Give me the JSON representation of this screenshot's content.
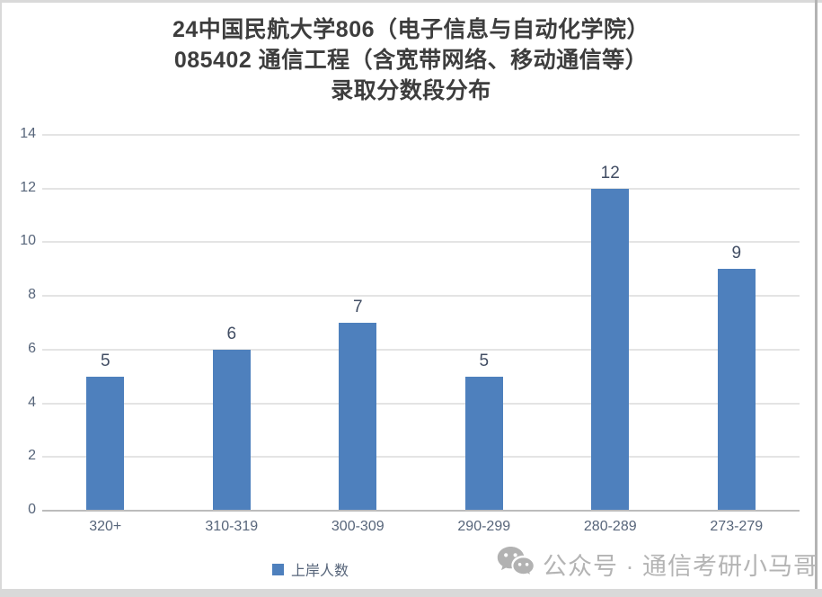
{
  "title": {
    "line1": "24中国民航大学806（电子信息与自动化学院）",
    "line2": "085402 通信工程（含宽带网络、移动通信等）",
    "line3": "录取分数段分布"
  },
  "legend": {
    "label": "上岸人数",
    "swatch_color": "#4e80bd"
  },
  "watermark": {
    "icon": "wechat-icon",
    "text": "公众号 · 通信考研小马哥",
    "color": "#b4b4b4"
  },
  "colors": {
    "bar": "#4e80bd",
    "gridline": "#e4e4e4",
    "axis_line": "#bcbcbc",
    "tick_label": "#57657a",
    "data_label": "#414d63",
    "title_text": "#3d3d3d"
  },
  "chart_data": {
    "type": "bar",
    "title": "24中国民航大学806（电子信息与自动化学院）085402 通信工程（含宽带网络、移动通信等）录取分数段分布",
    "categories": [
      "320+",
      "310-319",
      "300-309",
      "290-299",
      "280-289",
      "273-279"
    ],
    "series": [
      {
        "name": "上岸人数",
        "values": [
          5,
          6,
          7,
          5,
          12,
          9
        ]
      }
    ],
    "xlabel": "",
    "ylabel": "",
    "ylim": [
      0,
      14
    ],
    "yticks": [
      0,
      2,
      4,
      6,
      8,
      10,
      12,
      14
    ],
    "grid": true,
    "data_labels": true,
    "legend_position": "bottom",
    "bar_color": "#4e80bd"
  }
}
